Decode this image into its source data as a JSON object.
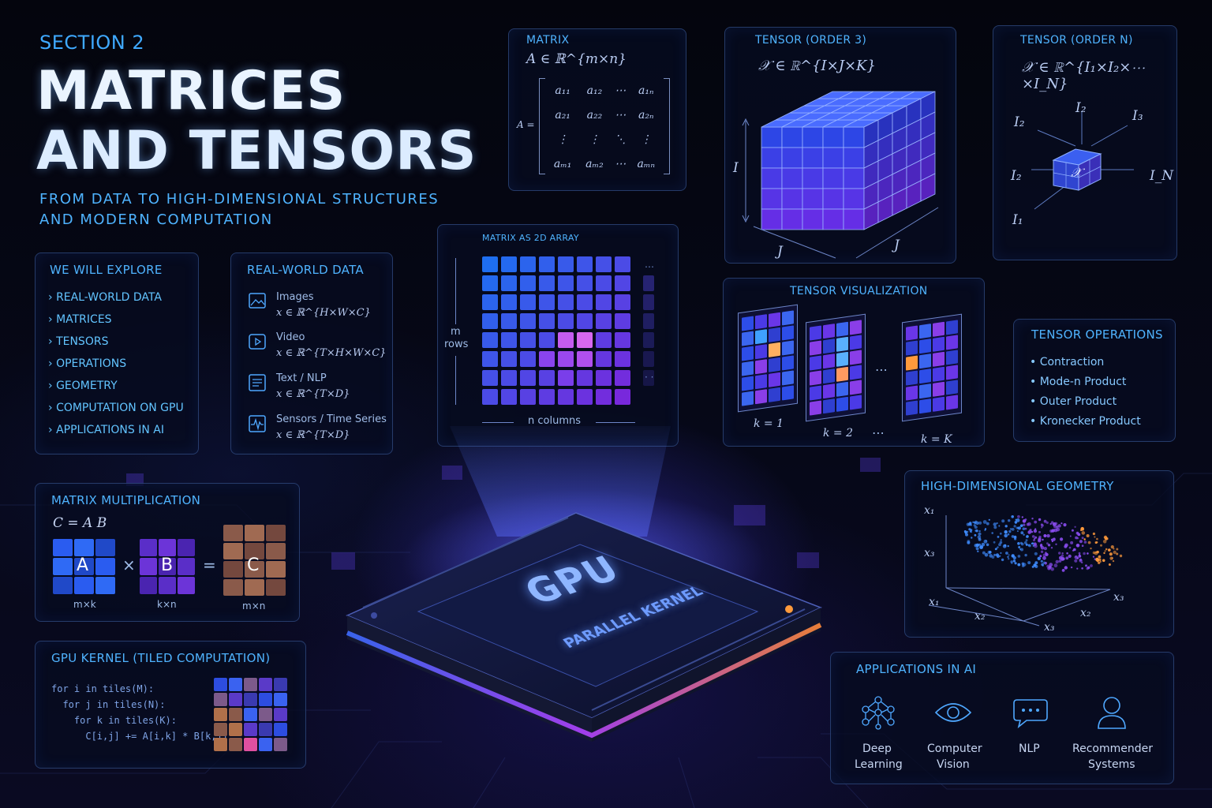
{
  "header": {
    "section": "SECTION 2",
    "title_line1": "MATRICES",
    "title_line2": "AND TENSORS",
    "subtitle_line1": "FROM DATA TO HIGH-DIMENSIONAL STRUCTURES",
    "subtitle_line2": "AND MODERN COMPUTATION"
  },
  "explore": {
    "title": "WE WILL EXPLORE",
    "items": [
      "REAL-WORLD DATA",
      "MATRICES",
      "TENSORS",
      "OPERATIONS",
      "GEOMETRY",
      "COMPUTATION ON GPU",
      "APPLICATIONS IN AI"
    ],
    "chevron": "›"
  },
  "realworld": {
    "title": "REAL-WORLD DATA",
    "items": [
      {
        "icon": "image-icon",
        "label": "Images",
        "formula": "x ∈ ℝ^{H×W×C}"
      },
      {
        "icon": "video-icon",
        "label": "Video",
        "formula": "x ∈ ℝ^{T×H×W×C}"
      },
      {
        "icon": "text-icon",
        "label": "Text / NLP",
        "formula": "x ∈ ℝ^{T×D}"
      },
      {
        "icon": "waveform-icon",
        "label": "Sensors / Time Series",
        "formula": "x ∈ ℝ^{T×D}"
      }
    ]
  },
  "matrix": {
    "title": "MATRIX",
    "definition": "A ∈ ℝ^{m×n}",
    "side_label": "A =",
    "rows": [
      [
        "a₁₁",
        "a₁₂",
        "⋯",
        "a₁ₙ"
      ],
      [
        "a₂₁",
        "a₂₂",
        "⋯",
        "a₂ₙ"
      ],
      [
        "⋮",
        "⋮",
        "⋱",
        "⋮"
      ],
      [
        "aₘ₁",
        "aₘ₂",
        "⋯",
        "aₘₙ"
      ]
    ]
  },
  "tensor3": {
    "title": "TENSOR (ORDER 3)",
    "definition": "𝒳 ∈ ℝ^{I×J×K}",
    "axis_i": "I",
    "axis_j": "J",
    "axis_k": "J"
  },
  "tensorN": {
    "title": "TENSOR (ORDER N)",
    "definition": "𝒳 ∈ ℝ^{I₁×I₂×⋯×I_N}",
    "center": "𝒳",
    "labels": [
      "I₂",
      "I₂",
      "I₃",
      "I₂",
      "I_N",
      "I₁"
    ]
  },
  "array2d": {
    "title": "MATRIX AS 2D ARRAY",
    "rows_label_1": "m",
    "rows_label_2": "rows",
    "cols_label": "n columns",
    "ellipsis_right": "⋯",
    "ellipsis_dots": "·  ·"
  },
  "tensorviz": {
    "title": "TENSOR VISUALIZATION",
    "slices": [
      "k = 1",
      "k = 2",
      "k = K"
    ],
    "dots": "⋯"
  },
  "tensorops": {
    "title": "TENSOR OPERATIONS",
    "items": [
      "Contraction",
      "Mode-n Product",
      "Outer Product",
      "Kronecker Product"
    ]
  },
  "matmul": {
    "title": "MATRIX MULTIPLICATION",
    "equation": "C = A B",
    "a": "A",
    "b": "B",
    "c": "C",
    "times": "×",
    "equals": "=",
    "a_dim": "m×k",
    "b_dim": "k×n",
    "c_dim": "m×n"
  },
  "kernel": {
    "title": "GPU KERNEL (TILED COMPUTATION)",
    "code": [
      "for i in tiles(M):",
      "  for j in tiles(N):",
      "    for k in tiles(K):",
      "      C[i,j] += A[i,k] * B[k,j]"
    ]
  },
  "gpu": {
    "label": "GPU",
    "sublabel": "PARALLEL KERNEL"
  },
  "geometry": {
    "title": "HIGH-DIMENSIONAL GEOMETRY",
    "axes": [
      "x₁",
      "x₃",
      "x₁",
      "x₂",
      "x₂",
      "x₃",
      "x₃"
    ]
  },
  "apps": {
    "title": "APPLICATIONS IN AI",
    "items": [
      {
        "icon": "neural-network-icon",
        "line1": "Deep",
        "line2": "Learning"
      },
      {
        "icon": "eye-icon",
        "line1": "Computer",
        "line2": "Vision"
      },
      {
        "icon": "chat-bubble-icon",
        "line1": "NLP",
        "line2": ""
      },
      {
        "icon": "user-icon",
        "line1": "Recommender",
        "line2": "Systems"
      }
    ]
  },
  "colors": {
    "accent": "#4fb3ff",
    "title_gradient_top": "#ffffff",
    "title_gradient_bottom": "#9ecbff",
    "cell_blue": "#2f4fe0",
    "cell_violet": "#7a3cf0",
    "cell_orange": "#ff9a3c"
  }
}
